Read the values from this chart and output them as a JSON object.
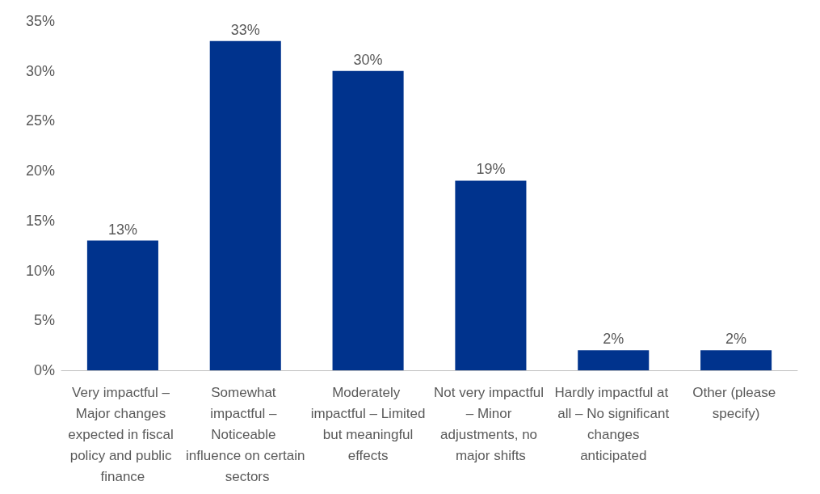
{
  "chart_data": {
    "type": "bar",
    "categories": [
      "Very impactful – Major changes expected in fiscal policy and public finance",
      "Somewhat impactful – Noticeable influence on certain sectors",
      "Moderately impactful – Limited but meaningful effects",
      "Not very impactful – Minor adjustments, no major shifts",
      "Hardly impactful at all – No significant changes anticipated",
      "Other (please specify)"
    ],
    "values": [
      13,
      33,
      30,
      19,
      2,
      2
    ],
    "value_labels": [
      "13%",
      "33%",
      "30%",
      "19%",
      "2%",
      "2%"
    ],
    "color": "#00338d",
    "ylim": [
      0,
      35
    ],
    "yticks": [
      {
        "value": 0,
        "label": "0%"
      },
      {
        "value": 5,
        "label": "5%"
      },
      {
        "value": 10,
        "label": "10%"
      },
      {
        "value": 15,
        "label": "15%"
      },
      {
        "value": 20,
        "label": "20%"
      },
      {
        "value": 25,
        "label": "25%"
      },
      {
        "value": 30,
        "label": "30%"
      },
      {
        "value": 35,
        "label": "35%"
      }
    ],
    "grid": false
  }
}
